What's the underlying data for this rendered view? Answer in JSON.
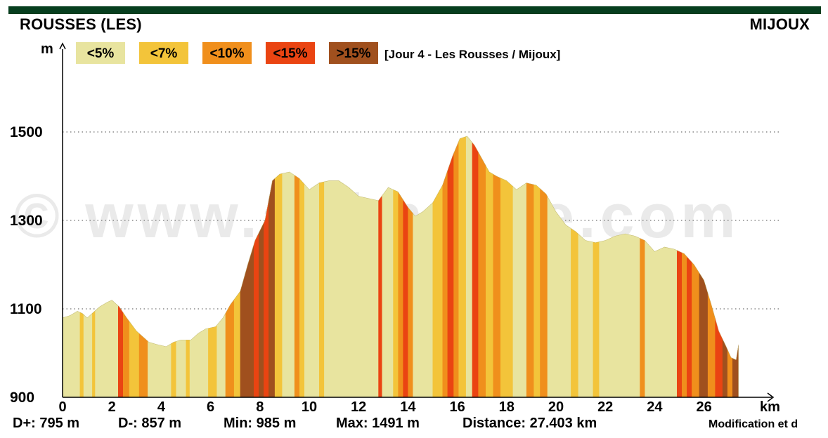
{
  "header": {
    "start_place": "ROUSSES (LES)",
    "end_place": "MIJOUX"
  },
  "legend": {
    "items": [
      {
        "label": "<5%",
        "color": "#e8e49f"
      },
      {
        "label": "<7%",
        "color": "#f3c43a"
      },
      {
        "label": "<10%",
        "color": "#f08f1c"
      },
      {
        "label": "<15%",
        "color": "#ea4412"
      },
      {
        "label": ">15%",
        "color": "#a0501e"
      }
    ],
    "caption": "[Jour 4 - Les Rousses / Mijoux]"
  },
  "watermark": "© www.altimaitre.com",
  "stats": {
    "d_plus": "D+: 795 m",
    "d_minus": "D-: 857 m",
    "min": "Min: 985 m",
    "max": "Max: 1491 m",
    "distance": "Distance: 27.403 km"
  },
  "credit": "Modification et d",
  "chart_data": {
    "type": "area",
    "title": "",
    "xlabel": "km",
    "ylabel": "m",
    "xlim": [
      0,
      28
    ],
    "ylim": [
      900,
      1620
    ],
    "xticks": [
      "0",
      "2",
      "4",
      "6",
      "8",
      "10",
      "12",
      "14",
      "16",
      "18",
      "20",
      "22",
      "24",
      "26"
    ],
    "yticks": [
      "900",
      "1100",
      "1300",
      "1500"
    ],
    "grid": "dotted horizontal at 1100, 1300, 1500",
    "series": [
      {
        "x": [
          0,
          0.3,
          0.6,
          0.8,
          1.0,
          1.2,
          1.5,
          1.8,
          2.0,
          2.3,
          2.6,
          3.0,
          3.5,
          3.8,
          4.2,
          4.5,
          4.8,
          5.2,
          5.5,
          5.8,
          6.2,
          6.5,
          6.8,
          7.2,
          7.5,
          7.8,
          8.2,
          8.5,
          8.8,
          9.2,
          9.6,
          10.0,
          10.4,
          10.8,
          11.2,
          11.6,
          12.0,
          12.4,
          12.8,
          13.2,
          13.6,
          14.0,
          14.3,
          14.6,
          15.0,
          15.4,
          15.8,
          16.1,
          16.4,
          16.7,
          17.0,
          17.3,
          17.6,
          18.0,
          18.4,
          18.8,
          19.2,
          19.6,
          20.0,
          20.4,
          20.8,
          21.2,
          21.6,
          22.0,
          22.4,
          22.8,
          23.2,
          23.6,
          24.0,
          24.4,
          24.8,
          25.2,
          25.6,
          26.0,
          26.3,
          26.6,
          26.9,
          27.1,
          27.3,
          27.4
        ],
        "y": [
          1080,
          1085,
          1095,
          1090,
          1080,
          1090,
          1105,
          1115,
          1120,
          1105,
          1080,
          1050,
          1025,
          1020,
          1015,
          1025,
          1030,
          1030,
          1045,
          1055,
          1060,
          1080,
          1110,
          1140,
          1200,
          1255,
          1300,
          1390,
          1405,
          1410,
          1395,
          1370,
          1385,
          1390,
          1390,
          1375,
          1355,
          1350,
          1345,
          1375,
          1365,
          1330,
          1310,
          1320,
          1340,
          1380,
          1445,
          1485,
          1491,
          1470,
          1440,
          1410,
          1400,
          1390,
          1370,
          1385,
          1380,
          1360,
          1320,
          1290,
          1275,
          1255,
          1250,
          1255,
          1265,
          1270,
          1265,
          1255,
          1230,
          1240,
          1235,
          1225,
          1200,
          1165,
          1110,
          1050,
          1015,
          990,
          985,
          1020
        ],
        "grade_bands": [
          {
            "from": 0,
            "to": 0.7,
            "grade": "<5%"
          },
          {
            "from": 0.7,
            "to": 0.85,
            "grade": "<7%"
          },
          {
            "from": 0.85,
            "to": 1.2,
            "grade": "<5%"
          },
          {
            "from": 1.2,
            "to": 1.32,
            "grade": "<7%"
          },
          {
            "from": 1.32,
            "to": 2.25,
            "grade": "<5%"
          },
          {
            "from": 2.25,
            "to": 2.45,
            "grade": "<15%"
          },
          {
            "from": 2.45,
            "to": 2.7,
            "grade": "<10%"
          },
          {
            "from": 2.7,
            "to": 3.1,
            "grade": "<7%"
          },
          {
            "from": 3.1,
            "to": 3.45,
            "grade": "<10%"
          },
          {
            "from": 3.45,
            "to": 4.4,
            "grade": "<5%"
          },
          {
            "from": 4.4,
            "to": 4.6,
            "grade": "<7%"
          },
          {
            "from": 4.6,
            "to": 5.0,
            "grade": "<5%"
          },
          {
            "from": 5.0,
            "to": 5.15,
            "grade": "<7%"
          },
          {
            "from": 5.15,
            "to": 5.9,
            "grade": "<5%"
          },
          {
            "from": 5.9,
            "to": 6.25,
            "grade": "<7%"
          },
          {
            "from": 6.25,
            "to": 6.6,
            "grade": "<5%"
          },
          {
            "from": 6.6,
            "to": 6.95,
            "grade": "<10%"
          },
          {
            "from": 6.95,
            "to": 7.2,
            "grade": "<7%"
          },
          {
            "from": 7.2,
            "to": 7.75,
            "grade": ">15%"
          },
          {
            "from": 7.75,
            "to": 7.95,
            "grade": "<15%"
          },
          {
            "from": 7.95,
            "to": 8.15,
            "grade": ">15%"
          },
          {
            "from": 8.15,
            "to": 8.35,
            "grade": "<15%"
          },
          {
            "from": 8.35,
            "to": 8.6,
            "grade": ">15%"
          },
          {
            "from": 8.6,
            "to": 8.9,
            "grade": "<7%"
          },
          {
            "from": 8.9,
            "to": 9.4,
            "grade": "<5%"
          },
          {
            "from": 9.4,
            "to": 9.6,
            "grade": "<10%"
          },
          {
            "from": 9.6,
            "to": 9.8,
            "grade": "<7%"
          },
          {
            "from": 9.8,
            "to": 10.4,
            "grade": "<5%"
          },
          {
            "from": 10.4,
            "to": 10.6,
            "grade": "<7%"
          },
          {
            "from": 10.6,
            "to": 12.8,
            "grade": "<5%"
          },
          {
            "from": 12.8,
            "to": 12.95,
            "grade": "<15%"
          },
          {
            "from": 12.95,
            "to": 13.4,
            "grade": "<5%"
          },
          {
            "from": 13.4,
            "to": 13.6,
            "grade": "<7%"
          },
          {
            "from": 13.6,
            "to": 13.8,
            "grade": "<10%"
          },
          {
            "from": 13.8,
            "to": 14.0,
            "grade": "<15%"
          },
          {
            "from": 14.0,
            "to": 14.2,
            "grade": "<10%"
          },
          {
            "from": 14.2,
            "to": 15.0,
            "grade": "<5%"
          },
          {
            "from": 15.0,
            "to": 15.4,
            "grade": "<7%"
          },
          {
            "from": 15.4,
            "to": 15.6,
            "grade": "<10%"
          },
          {
            "from": 15.6,
            "to": 15.85,
            "grade": "<15%"
          },
          {
            "from": 15.85,
            "to": 16.05,
            "grade": "<10%"
          },
          {
            "from": 16.05,
            "to": 16.35,
            "grade": "<7%"
          },
          {
            "from": 16.35,
            "to": 16.6,
            "grade": "<5%"
          },
          {
            "from": 16.6,
            "to": 16.85,
            "grade": "<15%"
          },
          {
            "from": 16.85,
            "to": 17.15,
            "grade": "<10%"
          },
          {
            "from": 17.15,
            "to": 17.45,
            "grade": "<7%"
          },
          {
            "from": 17.45,
            "to": 17.75,
            "grade": "<10%"
          },
          {
            "from": 17.75,
            "to": 18.25,
            "grade": "<7%"
          },
          {
            "from": 18.25,
            "to": 18.8,
            "grade": "<5%"
          },
          {
            "from": 18.8,
            "to": 19.1,
            "grade": "<10%"
          },
          {
            "from": 19.1,
            "to": 19.35,
            "grade": "<7%"
          },
          {
            "from": 19.35,
            "to": 19.65,
            "grade": "<10%"
          },
          {
            "from": 19.65,
            "to": 20.6,
            "grade": "<5%"
          },
          {
            "from": 20.6,
            "to": 20.9,
            "grade": "<7%"
          },
          {
            "from": 20.9,
            "to": 21.5,
            "grade": "<5%"
          },
          {
            "from": 21.5,
            "to": 21.75,
            "grade": "<7%"
          },
          {
            "from": 21.75,
            "to": 23.4,
            "grade": "<5%"
          },
          {
            "from": 23.4,
            "to": 23.6,
            "grade": "<10%"
          },
          {
            "from": 23.6,
            "to": 24.9,
            "grade": "<5%"
          },
          {
            "from": 24.9,
            "to": 25.1,
            "grade": "<15%"
          },
          {
            "from": 25.1,
            "to": 25.3,
            "grade": "<10%"
          },
          {
            "from": 25.3,
            "to": 25.5,
            "grade": "<15%"
          },
          {
            "from": 25.5,
            "to": 25.8,
            "grade": "<10%"
          },
          {
            "from": 25.8,
            "to": 26.15,
            "grade": ">15%"
          },
          {
            "from": 26.15,
            "to": 26.45,
            "grade": "<10%"
          },
          {
            "from": 26.45,
            "to": 26.75,
            "grade": "<15%"
          },
          {
            "from": 26.75,
            "to": 26.95,
            "grade": ">15%"
          },
          {
            "from": 26.95,
            "to": 27.15,
            "grade": "<10%"
          },
          {
            "from": 27.15,
            "to": 27.4,
            "grade": ">15%"
          }
        ]
      }
    ]
  }
}
